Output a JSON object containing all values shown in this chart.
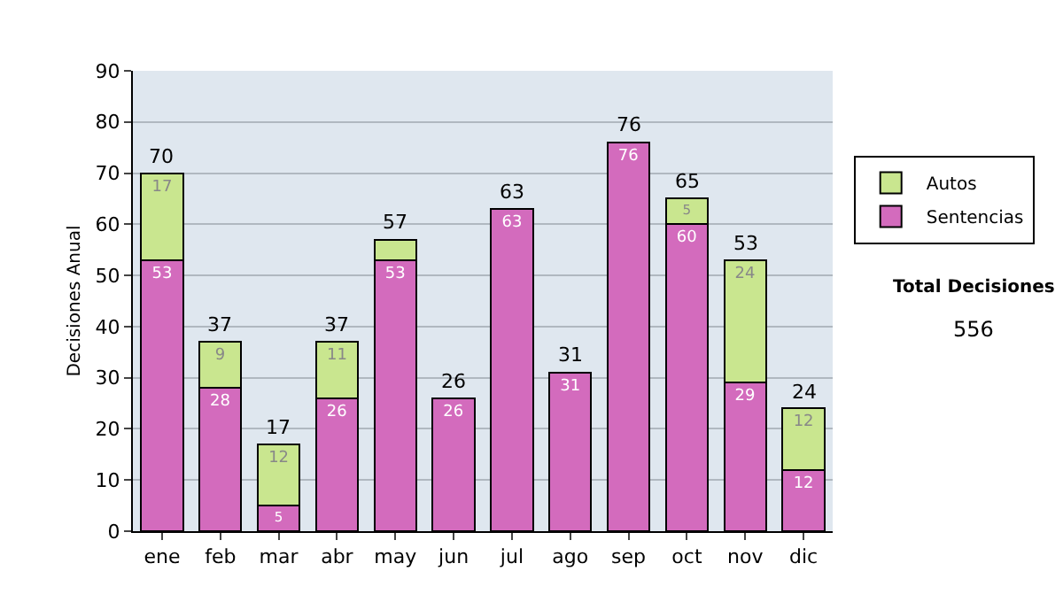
{
  "chart_data": {
    "type": "bar",
    "stacked": true,
    "categories": [
      "ene",
      "feb",
      "mar",
      "abr",
      "may",
      "jun",
      "jul",
      "ago",
      "sep",
      "oct",
      "nov",
      "dic"
    ],
    "series": [
      {
        "name": "Sentencias",
        "color": "#d36bbd",
        "values": [
          53,
          28,
          5,
          26,
          53,
          26,
          63,
          31,
          76,
          60,
          29,
          12
        ],
        "value_labels": [
          "53",
          "28",
          "5",
          "26",
          "53",
          "26",
          "63",
          "31",
          "76",
          "60",
          "29",
          "12"
        ]
      },
      {
        "name": "Autos",
        "color": "#c9e68f",
        "values": [
          17,
          9,
          12,
          11,
          4,
          0,
          0,
          0,
          0,
          5,
          24,
          12
        ],
        "value_labels": [
          "17",
          "9",
          "12",
          "11",
          null,
          null,
          null,
          null,
          null,
          "5",
          "24",
          "12"
        ]
      }
    ],
    "totals": [
      "70",
      "37",
      "17",
      "37",
      "57",
      "26",
      "63",
      "31",
      "76",
      "65",
      "53",
      "24"
    ],
    "ylabel": "Decisiones Anual",
    "ylim": [
      0,
      90
    ],
    "yticks": [
      0,
      10,
      20,
      30,
      40,
      50,
      60,
      70,
      80,
      90
    ],
    "grid": "y",
    "legend": "right",
    "annotations": [
      "Total Decisiones",
      "556"
    ]
  }
}
